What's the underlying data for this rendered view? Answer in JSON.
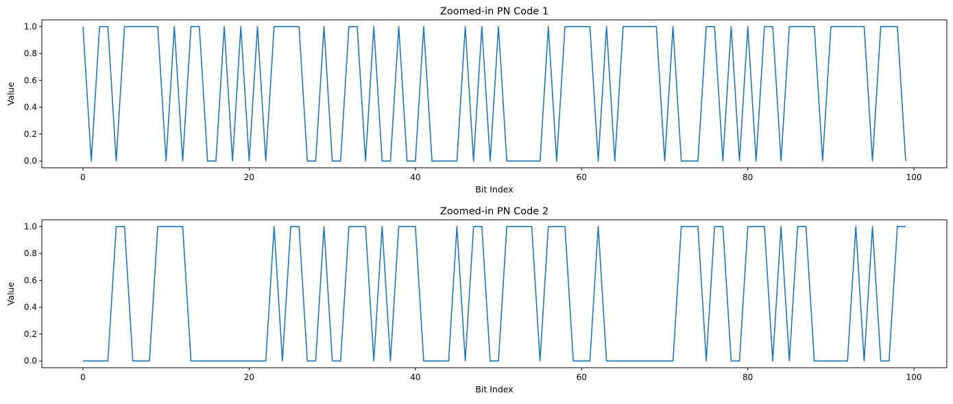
{
  "chart_data": [
    {
      "type": "line",
      "title": "Zoomed-in PN Code 1",
      "xlabel": "Bit Index",
      "ylabel": "Value",
      "xlim": [
        -4.95,
        103.95
      ],
      "ylim": [
        -0.05,
        1.05
      ],
      "xticks": [
        0,
        20,
        40,
        60,
        80,
        100
      ],
      "yticks": [
        0.0,
        0.2,
        0.4,
        0.6,
        0.8,
        1.0
      ],
      "grid": false,
      "color": "#1f77b4",
      "x_start": 0,
      "values": [
        1,
        0,
        1,
        1,
        0,
        1,
        1,
        1,
        1,
        1,
        0,
        1,
        0,
        1,
        1,
        0,
        0,
        1,
        0,
        1,
        0,
        1,
        0,
        1,
        1,
        1,
        1,
        0,
        0,
        1,
        0,
        0,
        1,
        1,
        0,
        1,
        0,
        0,
        1,
        0,
        0,
        1,
        0,
        0,
        0,
        0,
        1,
        0,
        1,
        0,
        1,
        0,
        0,
        0,
        0,
        0,
        1,
        0,
        1,
        1,
        1,
        1,
        0,
        1,
        0,
        1,
        1,
        1,
        1,
        1,
        0,
        1,
        0,
        0,
        0,
        1,
        1,
        0,
        1,
        0,
        1,
        0,
        1,
        1,
        0,
        1,
        1,
        1,
        1,
        0,
        1,
        1,
        1,
        1,
        1,
        0,
        1,
        1,
        1,
        0
      ]
    },
    {
      "type": "line",
      "title": "Zoomed-in PN Code 2",
      "xlabel": "Bit Index",
      "ylabel": "Value",
      "xlim": [
        -4.95,
        103.95
      ],
      "ylim": [
        -0.05,
        1.05
      ],
      "xticks": [
        0,
        20,
        40,
        60,
        80,
        100
      ],
      "yticks": [
        0.0,
        0.2,
        0.4,
        0.6,
        0.8,
        1.0
      ],
      "grid": false,
      "color": "#1f77b4",
      "x_start": 0,
      "values": [
        0,
        0,
        0,
        0,
        1,
        1,
        0,
        0,
        0,
        1,
        1,
        1,
        1,
        0,
        0,
        0,
        0,
        0,
        0,
        0,
        0,
        0,
        0,
        1,
        0,
        1,
        1,
        0,
        0,
        1,
        0,
        0,
        1,
        1,
        1,
        0,
        1,
        0,
        1,
        1,
        1,
        0,
        0,
        0,
        0,
        1,
        0,
        1,
        1,
        0,
        0,
        1,
        1,
        1,
        1,
        0,
        1,
        1,
        1,
        0,
        0,
        0,
        1,
        0,
        0,
        0,
        0,
        0,
        0,
        0,
        0,
        0,
        1,
        1,
        1,
        0,
        1,
        1,
        0,
        0,
        1,
        1,
        1,
        0,
        1,
        0,
        1,
        1,
        0,
        0,
        0,
        0,
        0,
        1,
        0,
        1,
        0,
        0,
        1,
        1
      ]
    }
  ]
}
